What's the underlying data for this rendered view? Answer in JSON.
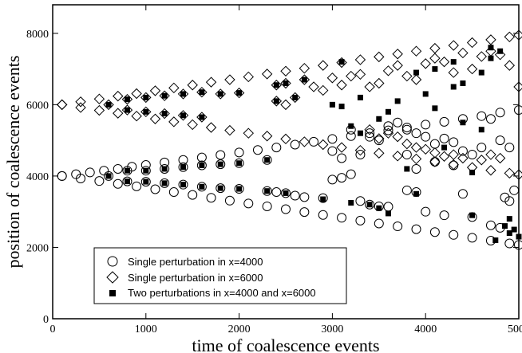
{
  "chart_data": {
    "type": "scatter",
    "title": "",
    "xlabel": "time of coalescence events",
    "ylabel": "position of coalescence events",
    "xlim": [
      0,
      5000
    ],
    "ylim": [
      0,
      8800
    ],
    "x_ticks": [
      "0",
      "1000",
      "2000",
      "3000",
      "4000",
      "5000"
    ],
    "y_ticks": [
      "0",
      "2000",
      "4000",
      "6000",
      "8000"
    ],
    "grid": false,
    "legend_position": "bottom-left",
    "series": [
      {
        "name": "Single perturbation in x=4000",
        "marker": "open-circle",
        "points": [
          [
            100,
            4000
          ],
          [
            250,
            4050
          ],
          [
            400,
            4100
          ],
          [
            550,
            4150
          ],
          [
            700,
            4200
          ],
          [
            850,
            4260
          ],
          [
            1000,
            4310
          ],
          [
            1200,
            4380
          ],
          [
            1400,
            4450
          ],
          [
            1600,
            4520
          ],
          [
            1800,
            4590
          ],
          [
            2000,
            4660
          ],
          [
            2200,
            4730
          ],
          [
            2400,
            4800
          ],
          [
            2600,
            4880
          ],
          [
            2800,
            4960
          ],
          [
            3000,
            5040
          ],
          [
            3200,
            5120
          ],
          [
            3400,
            5200
          ],
          [
            3600,
            5280
          ],
          [
            3800,
            5360
          ],
          [
            4000,
            5440
          ],
          [
            4200,
            5520
          ],
          [
            4400,
            5600
          ],
          [
            4600,
            5680
          ],
          [
            4800,
            5780
          ],
          [
            5000,
            5850
          ],
          [
            100,
            4000
          ],
          [
            300,
            3930
          ],
          [
            500,
            3860
          ],
          [
            700,
            3780
          ],
          [
            900,
            3710
          ],
          [
            1100,
            3630
          ],
          [
            1300,
            3550
          ],
          [
            1500,
            3470
          ],
          [
            1700,
            3390
          ],
          [
            1900,
            3310
          ],
          [
            2100,
            3230
          ],
          [
            2300,
            3150
          ],
          [
            2500,
            3070
          ],
          [
            2700,
            2990
          ],
          [
            2900,
            2910
          ],
          [
            3100,
            2830
          ],
          [
            3300,
            2750
          ],
          [
            3500,
            2670
          ],
          [
            3700,
            2590
          ],
          [
            3900,
            2510
          ],
          [
            4100,
            2430
          ],
          [
            4300,
            2350
          ],
          [
            4500,
            2270
          ],
          [
            4700,
            2190
          ],
          [
            4900,
            2110
          ],
          [
            5000,
            2070
          ],
          [
            600,
            4000
          ],
          [
            800,
            4150
          ],
          [
            800,
            3850
          ],
          [
            1000,
            4150
          ],
          [
            1000,
            3840
          ],
          [
            1200,
            4200
          ],
          [
            1200,
            3800
          ],
          [
            1400,
            4250
          ],
          [
            1400,
            3760
          ],
          [
            1600,
            4300
          ],
          [
            1600,
            3700
          ],
          [
            1800,
            4330
          ],
          [
            1800,
            3660
          ],
          [
            2000,
            4360
          ],
          [
            2000,
            3640
          ],
          [
            2300,
            4450
          ],
          [
            2300,
            3580
          ],
          [
            2400,
            3550
          ],
          [
            2500,
            3520
          ],
          [
            2600,
            3450
          ],
          [
            2700,
            3410
          ],
          [
            2900,
            3380
          ],
          [
            3300,
            3300
          ],
          [
            3400,
            3200
          ],
          [
            3500,
            3150
          ],
          [
            3600,
            3140
          ],
          [
            3800,
            3600
          ],
          [
            3900,
            3550
          ],
          [
            4000,
            3000
          ],
          [
            4200,
            2900
          ],
          [
            4400,
            3500
          ],
          [
            4500,
            2850
          ],
          [
            4700,
            2620
          ],
          [
            4800,
            2550
          ],
          [
            4850,
            3400
          ],
          [
            4900,
            3300
          ],
          [
            4950,
            3600
          ],
          [
            3200,
            5300
          ],
          [
            3400,
            5100
          ],
          [
            3500,
            5000
          ],
          [
            3600,
            5400
          ],
          [
            3700,
            5500
          ],
          [
            3800,
            5300
          ],
          [
            3900,
            5200
          ],
          [
            4000,
            5100
          ],
          [
            4100,
            4900
          ],
          [
            4200,
            5050
          ],
          [
            4300,
            4950
          ],
          [
            4400,
            4700
          ],
          [
            4500,
            4600
          ],
          [
            4600,
            4800
          ],
          [
            4700,
            5600
          ],
          [
            4800,
            5000
          ],
          [
            4900,
            4800
          ],
          [
            3000,
            4700
          ],
          [
            3100,
            4500
          ],
          [
            3300,
            4600
          ],
          [
            3100,
            3950
          ],
          [
            3200,
            4050
          ],
          [
            3000,
            3900
          ],
          [
            3800,
            4600
          ],
          [
            3900,
            4200
          ],
          [
            4100,
            4400
          ],
          [
            4300,
            4300
          ]
        ]
      },
      {
        "name": "Single perturbation in x=6000",
        "marker": "open-diamond",
        "points": [
          [
            100,
            6000
          ],
          [
            300,
            6080
          ],
          [
            500,
            6160
          ],
          [
            700,
            6240
          ],
          [
            900,
            6310
          ],
          [
            1100,
            6390
          ],
          [
            1300,
            6470
          ],
          [
            1500,
            6550
          ],
          [
            1700,
            6630
          ],
          [
            1900,
            6700
          ],
          [
            2100,
            6780
          ],
          [
            2300,
            6860
          ],
          [
            2500,
            6940
          ],
          [
            2700,
            7020
          ],
          [
            2900,
            7100
          ],
          [
            3100,
            7180
          ],
          [
            3300,
            7260
          ],
          [
            3500,
            7340
          ],
          [
            3700,
            7420
          ],
          [
            3900,
            7500
          ],
          [
            4100,
            7580
          ],
          [
            4300,
            7660
          ],
          [
            4500,
            7740
          ],
          [
            4700,
            7820
          ],
          [
            4900,
            7900
          ],
          [
            5000,
            7950
          ],
          [
            100,
            6000
          ],
          [
            300,
            5920
          ],
          [
            500,
            5840
          ],
          [
            700,
            5760
          ],
          [
            900,
            5680
          ],
          [
            1100,
            5600
          ],
          [
            1300,
            5520
          ],
          [
            1500,
            5440
          ],
          [
            1700,
            5360
          ],
          [
            1900,
            5280
          ],
          [
            2100,
            5200
          ],
          [
            2300,
            5120
          ],
          [
            2500,
            5040
          ],
          [
            2700,
            4960
          ],
          [
            2900,
            4880
          ],
          [
            3100,
            4800
          ],
          [
            3300,
            4720
          ],
          [
            3500,
            4640
          ],
          [
            3700,
            4560
          ],
          [
            3900,
            4480
          ],
          [
            4100,
            4400
          ],
          [
            4300,
            4320
          ],
          [
            4500,
            4240
          ],
          [
            4700,
            4160
          ],
          [
            4900,
            4080
          ],
          [
            5000,
            4040
          ],
          [
            600,
            6000
          ],
          [
            800,
            6150
          ],
          [
            800,
            5850
          ],
          [
            1000,
            6200
          ],
          [
            1000,
            5800
          ],
          [
            1200,
            6250
          ],
          [
            1200,
            5750
          ],
          [
            1400,
            6300
          ],
          [
            1400,
            5700
          ],
          [
            1600,
            6350
          ],
          [
            1600,
            5650
          ],
          [
            1800,
            6300
          ],
          [
            2000,
            6330
          ],
          [
            2400,
            6550
          ],
          [
            2400,
            6100
          ],
          [
            2500,
            6600
          ],
          [
            2500,
            6000
          ],
          [
            2600,
            6200
          ],
          [
            2700,
            6700
          ],
          [
            2800,
            6500
          ],
          [
            2900,
            6400
          ],
          [
            3000,
            6750
          ],
          [
            3100,
            6550
          ],
          [
            3200,
            6800
          ],
          [
            3300,
            6850
          ],
          [
            3400,
            6500
          ],
          [
            3500,
            6600
          ],
          [
            3600,
            6950
          ],
          [
            3700,
            7100
          ],
          [
            3800,
            6800
          ],
          [
            3900,
            6700
          ],
          [
            4000,
            7150
          ],
          [
            4100,
            7300
          ],
          [
            4200,
            7200
          ],
          [
            4300,
            6900
          ],
          [
            4400,
            7450
          ],
          [
            4500,
            7000
          ],
          [
            4600,
            7350
          ],
          [
            4700,
            7500
          ],
          [
            4800,
            7400
          ],
          [
            4900,
            7100
          ],
          [
            5000,
            6500
          ],
          [
            3400,
            5300
          ],
          [
            3500,
            5050
          ],
          [
            3600,
            5200
          ],
          [
            3700,
            5100
          ],
          [
            3800,
            4900
          ],
          [
            3900,
            4800
          ],
          [
            4000,
            4750
          ],
          [
            4100,
            4650
          ],
          [
            4200,
            4550
          ],
          [
            4300,
            4600
          ],
          [
            4400,
            4500
          ],
          [
            4600,
            4450
          ],
          [
            4700,
            4600
          ],
          [
            4800,
            4500
          ]
        ]
      },
      {
        "name": "Two perturbations in x=4000 and x=6000",
        "marker": "filled-square",
        "points": [
          [
            600,
            6000
          ],
          [
            800,
            6150
          ],
          [
            800,
            5850
          ],
          [
            1000,
            6200
          ],
          [
            1000,
            5800
          ],
          [
            1200,
            6250
          ],
          [
            1200,
            5750
          ],
          [
            1400,
            6300
          ],
          [
            1400,
            5700
          ],
          [
            1600,
            6350
          ],
          [
            1600,
            5650
          ],
          [
            1800,
            6300
          ],
          [
            2000,
            6330
          ],
          [
            600,
            4000
          ],
          [
            800,
            4150
          ],
          [
            800,
            3850
          ],
          [
            1000,
            4150
          ],
          [
            1000,
            3840
          ],
          [
            1200,
            4200
          ],
          [
            1200,
            3800
          ],
          [
            1400,
            4250
          ],
          [
            1400,
            3760
          ],
          [
            1600,
            4300
          ],
          [
            1600,
            3700
          ],
          [
            1800,
            4330
          ],
          [
            1800,
            3660
          ],
          [
            2000,
            4360
          ],
          [
            2000,
            3640
          ],
          [
            2300,
            4450
          ],
          [
            2300,
            3580
          ],
          [
            2400,
            6550
          ],
          [
            2400,
            6100
          ],
          [
            2500,
            6600
          ],
          [
            2500,
            3520
          ],
          [
            2600,
            6200
          ],
          [
            2700,
            6700
          ],
          [
            3100,
            7200
          ],
          [
            3200,
            5400
          ],
          [
            3300,
            5200
          ],
          [
            3400,
            3200
          ],
          [
            3500,
            5600
          ],
          [
            3600,
            5800
          ],
          [
            3700,
            6100
          ],
          [
            3800,
            4200
          ],
          [
            3900,
            3500
          ],
          [
            4000,
            6300
          ],
          [
            4100,
            5900
          ],
          [
            4200,
            4800
          ],
          [
            4300,
            6500
          ],
          [
            4400,
            6600
          ],
          [
            4500,
            4100
          ],
          [
            4500,
            2900
          ],
          [
            4600,
            6900
          ],
          [
            4700,
            7300
          ],
          [
            4800,
            7500
          ],
          [
            4850,
            2600
          ],
          [
            4900,
            2400
          ],
          [
            4950,
            2500
          ],
          [
            5000,
            2300
          ],
          [
            4750,
            2200
          ],
          [
            4900,
            2800
          ],
          [
            4600,
            5300
          ],
          [
            4400,
            5500
          ],
          [
            3500,
            3100
          ],
          [
            3600,
            2950
          ],
          [
            3200,
            3250
          ],
          [
            2900,
            3350
          ],
          [
            3000,
            6000
          ],
          [
            3100,
            5950
          ],
          [
            3300,
            6200
          ],
          [
            3900,
            6900
          ],
          [
            4100,
            7000
          ],
          [
            4300,
            7200
          ],
          [
            4700,
            7600
          ]
        ]
      }
    ]
  }
}
